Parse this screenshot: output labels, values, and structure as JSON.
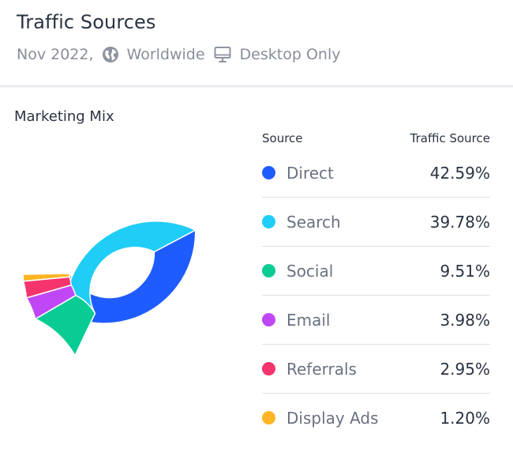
{
  "header": {
    "title": "Traffic Sources",
    "date": "Nov 2022,",
    "region": "Worldwide",
    "device": "Desktop Only",
    "region_icon": "globe-icon",
    "device_icon": "desktop-icon"
  },
  "section_title": "Marketing Mix",
  "table": {
    "source_header": "Source",
    "value_header": "Traffic Source"
  },
  "chart_data": {
    "type": "pie",
    "variant": "donut",
    "title": "Marketing Mix",
    "categories": [
      "Direct",
      "Search",
      "Social",
      "Email",
      "Referrals",
      "Display Ads"
    ],
    "values": [
      42.59,
      39.78,
      9.51,
      3.98,
      2.95,
      1.2
    ],
    "labels": [
      "42.59%",
      "39.78%",
      "9.51%",
      "3.98%",
      "2.95%",
      "1.20%"
    ],
    "colors": [
      "#1f5cff",
      "#1fcdf7",
      "#08cc94",
      "#bf47f5",
      "#f5336c",
      "#ffb524"
    ],
    "legend_position": "right"
  }
}
